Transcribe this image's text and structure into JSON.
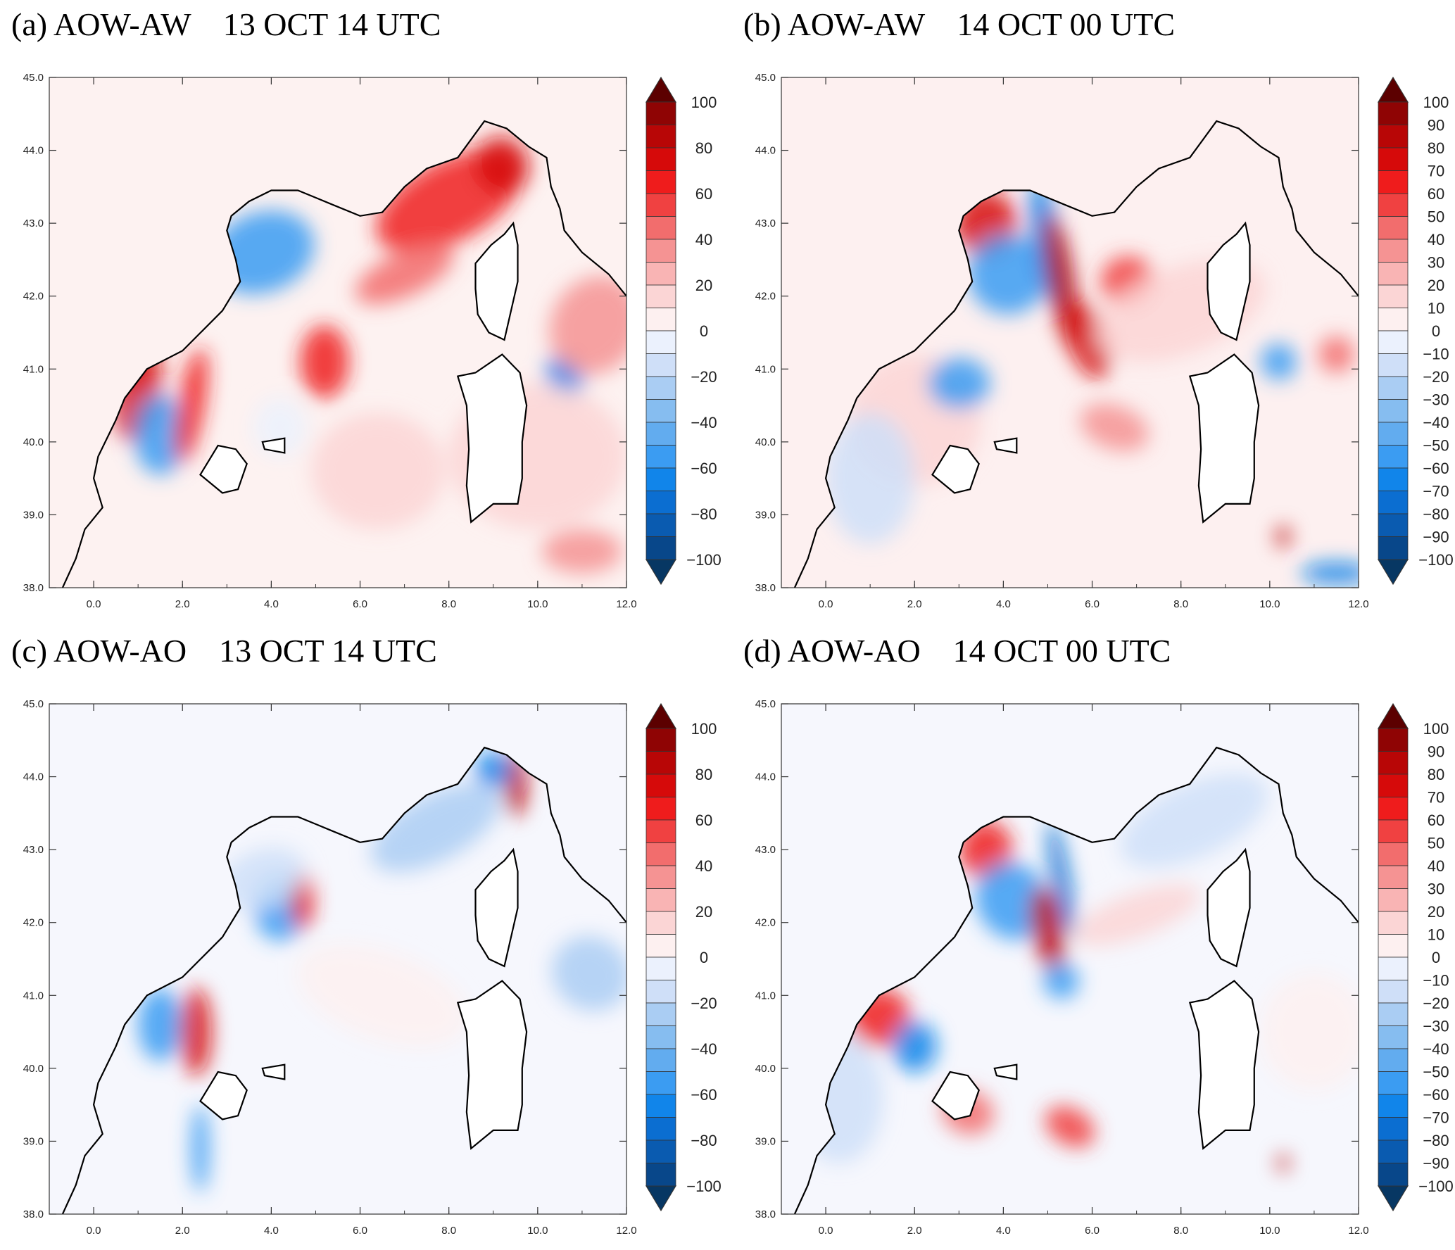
{
  "colors": {
    "level_colors": [
      "#073763",
      "#08478a",
      "#0a5bb0",
      "#0b6ed1",
      "#1185ea",
      "#3b9cf2",
      "#62acef",
      "#86bdf0",
      "#aacdf3",
      "#cfdff8",
      "#ebf1fd",
      "#fdf0f0",
      "#fbd5d5",
      "#f9b4b4",
      "#f59393",
      "#f26d6d",
      "#f04141",
      "#ef1c1c",
      "#d60a0a",
      "#b80606",
      "#8f0404",
      "#5c0000"
    ],
    "coast": "#000000"
  },
  "map": {
    "lon_ticks": [
      "0.0",
      "2.0",
      "4.0",
      "6.0",
      "8.0",
      "10.0",
      "12.0"
    ],
    "lat_ticks": [
      "38.0",
      "39.0",
      "40.0",
      "41.0",
      "42.0",
      "43.0",
      "44.0",
      "45.0"
    ]
  },
  "panels": [
    {
      "title": "(a) AOW-AW    13 OCT 14 UTC",
      "cbar_labels": [
        "100",
        "80",
        "60",
        "40",
        "20",
        "0",
        "−20",
        "−40",
        "−60",
        "−80",
        "−100"
      ]
    },
    {
      "title": "(b) AOW-AW    14 OCT 00 UTC",
      "cbar_labels": [
        "100",
        "90",
        "80",
        "70",
        "60",
        "50",
        "40",
        "30",
        "20",
        "10",
        "0",
        "−10",
        "−20",
        "−30",
        "−40",
        "−50",
        "−60",
        "−70",
        "−80",
        "−90",
        "−100"
      ]
    },
    {
      "title": "(c) AOW-AO    13 OCT 14 UTC",
      "cbar_labels": [
        "100",
        "80",
        "60",
        "40",
        "20",
        "0",
        "−20",
        "−40",
        "−60",
        "−80",
        "−100"
      ]
    },
    {
      "title": "(d) AOW-AO    14 OCT 00 UTC",
      "cbar_labels": [
        "100",
        "90",
        "80",
        "70",
        "60",
        "50",
        "40",
        "30",
        "20",
        "10",
        "0",
        "−10",
        "−20",
        "−30",
        "−40",
        "−50",
        "−60",
        "−70",
        "−80",
        "−90",
        "−100"
      ]
    }
  ]
}
